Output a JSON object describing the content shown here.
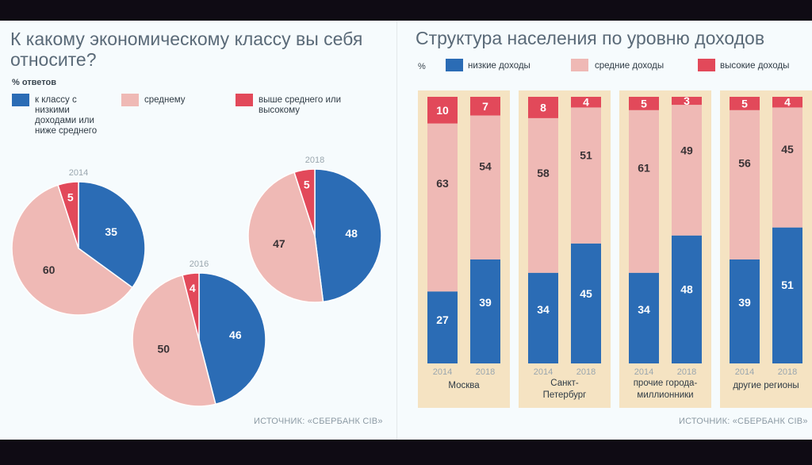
{
  "left_panel": {
    "title": "К какому экономическому классу вы себя относите?",
    "unit": "% ответов",
    "legend": [
      {
        "label": "к классу с низкими доходами или ниже среднего",
        "color": "#2b6cb5"
      },
      {
        "label": "среднему",
        "color": "#efb9b5"
      },
      {
        "label": "выше среднего или высокому",
        "color": "#e2495a"
      }
    ],
    "source": "ИСТОЧНИК: «СБЕРБАНК CIB»"
  },
  "right_panel": {
    "title": "Структура населения по уровню доходов",
    "unit": "%",
    "legend": [
      {
        "label": "низкие доходы",
        "color": "#2b6cb5"
      },
      {
        "label": "средние доходы",
        "color": "#efb9b5"
      },
      {
        "label": "высокие доходы",
        "color": "#e2495a"
      }
    ],
    "source": "ИСТОЧНИК: «СБЕРБАНК CIB»"
  },
  "chart_data": [
    {
      "type": "pie",
      "title": "К какому экономическому классу вы себя относите?",
      "unit": "% ответов",
      "series_labels": [
        "к классу с низкими доходами или ниже среднего",
        "среднему",
        "выше среднего или высокому"
      ],
      "pies": [
        {
          "year": "2014",
          "values": [
            35,
            60,
            5
          ]
        },
        {
          "year": "2016",
          "values": [
            46,
            50,
            4
          ]
        },
        {
          "year": "2018",
          "values": [
            48,
            47,
            5
          ]
        }
      ]
    },
    {
      "type": "bar",
      "stacked": true,
      "title": "Структура населения по уровню доходов",
      "unit": "%",
      "ylim": [
        0,
        100
      ],
      "groups": [
        {
          "label": "Москва",
          "bars": [
            {
              "year": "2014",
              "values": [
                27,
                63,
                10
              ]
            },
            {
              "year": "2018",
              "values": [
                39,
                54,
                7
              ]
            }
          ]
        },
        {
          "label": "Санкт-Петербург",
          "bars": [
            {
              "year": "2014",
              "values": [
                34,
                58,
                8
              ]
            },
            {
              "year": "2018",
              "values": [
                45,
                51,
                4
              ]
            }
          ]
        },
        {
          "label": "прочие города-миллионники",
          "bars": [
            {
              "year": "2014",
              "values": [
                34,
                61,
                5
              ]
            },
            {
              "year": "2018",
              "values": [
                48,
                49,
                3
              ]
            }
          ]
        },
        {
          "label": "другие регионы",
          "bars": [
            {
              "year": "2014",
              "values": [
                39,
                56,
                5
              ]
            },
            {
              "year": "2018",
              "values": [
                51,
                45,
                4
              ]
            }
          ]
        }
      ],
      "series": [
        {
          "name": "низкие доходы",
          "color": "#2b6cb5"
        },
        {
          "name": "средние доходы",
          "color": "#efb9b5"
        },
        {
          "name": "высокие доходы",
          "color": "#e2495a"
        }
      ]
    }
  ]
}
